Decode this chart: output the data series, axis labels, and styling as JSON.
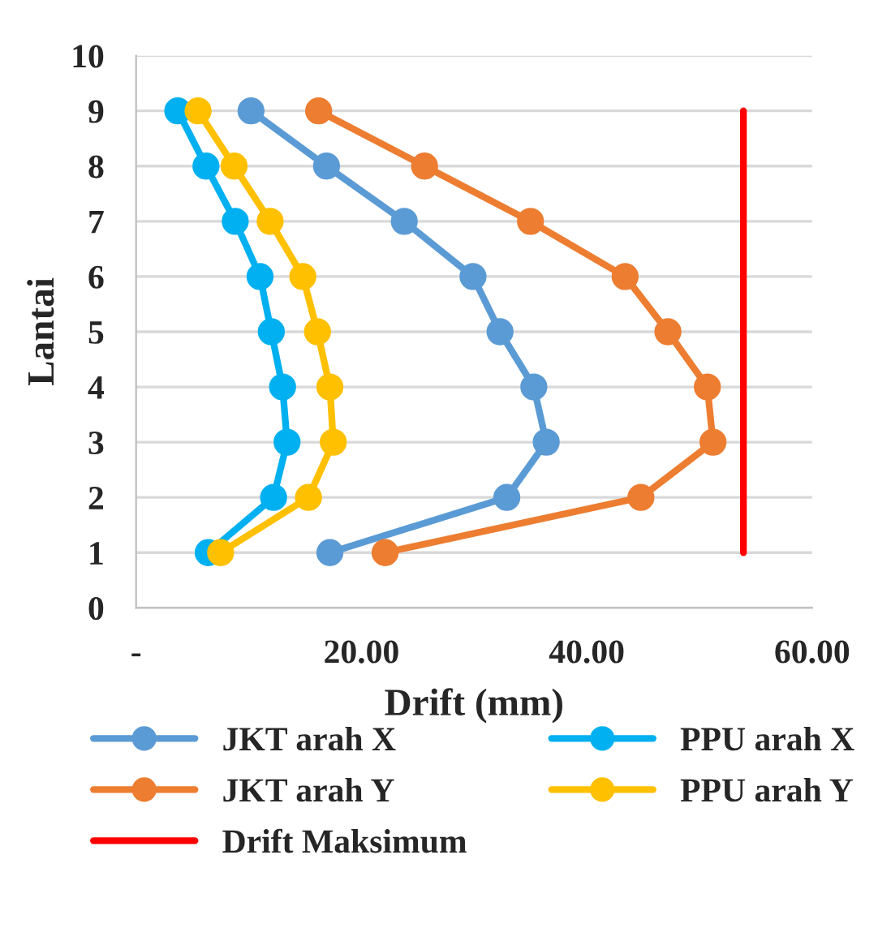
{
  "chart_data": {
    "type": "line",
    "xlabel": "Drift (mm)",
    "ylabel": "Lantai",
    "xlim": [
      0,
      60
    ],
    "xticks": [
      {
        "value": 0,
        "label": "-"
      },
      {
        "value": 20,
        "label": "20.00"
      },
      {
        "value": 40,
        "label": "40.00"
      },
      {
        "value": 60,
        "label": "60.00"
      }
    ],
    "ylim": [
      0,
      10
    ],
    "yticks": [
      0,
      1,
      2,
      3,
      4,
      5,
      6,
      7,
      8,
      9,
      10
    ],
    "grid": "y",
    "legend": "bottom",
    "marker": "circle",
    "line_style": "solid",
    "series": [
      {
        "name": "JKT arah X",
        "color": "#5b9bd5",
        "x": [
          17.2,
          32.9,
          36.4,
          35.3,
          32.3,
          29.9,
          23.8,
          16.9,
          10.2
        ],
        "values": [
          1,
          2,
          3,
          4,
          5,
          6,
          7,
          8,
          9
        ]
      },
      {
        "name": "PPU arah X",
        "color": "#00b0f0",
        "x": [
          6.4,
          12.2,
          13.4,
          13.0,
          12.0,
          11.0,
          8.8,
          6.2,
          3.7
        ],
        "values": [
          1,
          2,
          3,
          4,
          5,
          6,
          7,
          8,
          9
        ]
      },
      {
        "name": "JKT arah Y",
        "color": "#ed7d31",
        "x": [
          22.1,
          44.8,
          51.2,
          50.7,
          47.2,
          43.4,
          35.0,
          25.6,
          16.2
        ],
        "values": [
          1,
          2,
          3,
          4,
          5,
          6,
          7,
          8,
          9
        ]
      },
      {
        "name": "PPU arah Y",
        "color": "#ffc000",
        "x": [
          7.5,
          15.3,
          17.5,
          17.2,
          16.1,
          14.8,
          11.9,
          8.7,
          5.5
        ],
        "values": [
          1,
          2,
          3,
          4,
          5,
          6,
          7,
          8,
          9
        ]
      },
      {
        "name": "Drift Maksimum",
        "color": "#ff0000",
        "marker": "none",
        "x": [
          53.9,
          53.9
        ],
        "values": [
          1,
          9
        ]
      }
    ]
  }
}
